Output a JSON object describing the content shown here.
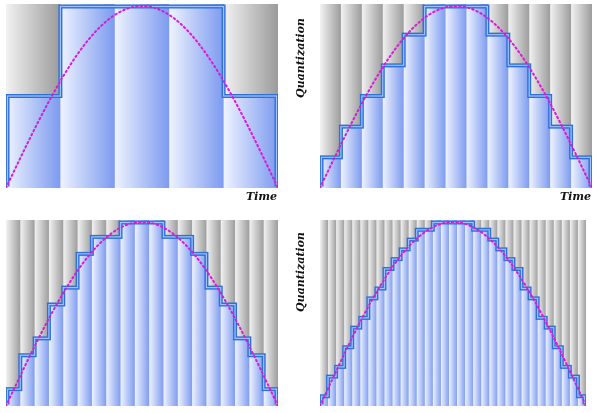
{
  "labels": {
    "time": "Time",
    "quantization": "Quantization"
  },
  "colors": {
    "curve": "#d81bd8",
    "staircase_outer": "#2f6fd6",
    "staircase_inner": "#9fc2ff",
    "grid_light": "#f2f2f2",
    "grid_dark": "#9a9a9a",
    "fill_light": "#eef3ff",
    "fill_dark": "#7b99ef"
  },
  "panels": [
    {
      "name": "panel-1",
      "sample_columns": 5,
      "quantization_levels": 2
    },
    {
      "name": "panel-2",
      "sample_columns": 13,
      "quantization_levels": 6
    },
    {
      "name": "panel-3",
      "sample_columns": 19,
      "quantization_levels": 11
    },
    {
      "name": "panel-4",
      "sample_columns": 33,
      "quantization_levels": 19
    }
  ]
}
